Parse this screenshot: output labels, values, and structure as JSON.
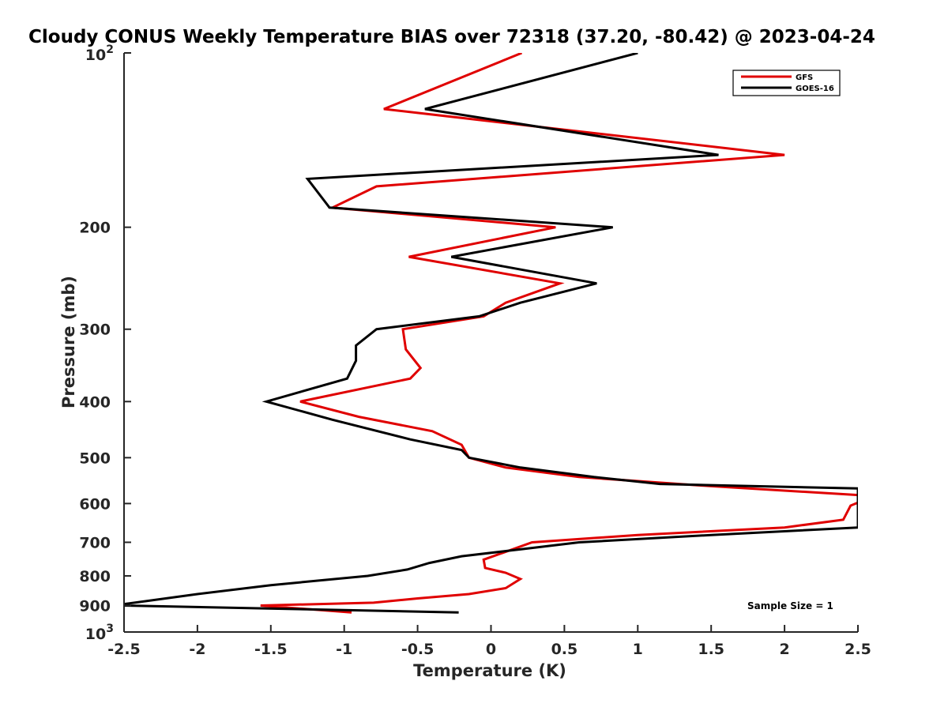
{
  "chart_data": {
    "type": "line",
    "title": "Cloudy CONUS Weekly Temperature BIAS over 72318 (37.20, -80.42) @ 2023-04-24",
    "xlabel": "Temperature (K)",
    "ylabel": "Pressure (mb)",
    "xlim": [
      -2.5,
      2.5
    ],
    "ylim": [
      100,
      1000
    ],
    "yscale": "log",
    "y_reversed": true,
    "xticks": [
      -2.5,
      -2,
      -1.5,
      -1,
      -0.5,
      0,
      0.5,
      1,
      1.5,
      2,
      2.5
    ],
    "xtick_labels": [
      "-2.5",
      "-2",
      "-1.5",
      "-1",
      "-0.5",
      "0",
      "0.5",
      "1",
      "1.5",
      "2",
      "2.5"
    ],
    "yticks": [
      200,
      300,
      400,
      500,
      600,
      700,
      800,
      900
    ],
    "ytick_labels": [
      "200",
      "300",
      "400",
      "500",
      "600",
      "700",
      "800",
      "900"
    ],
    "y_end_labels": {
      "top": {
        "value": 100,
        "base": "10",
        "exp": "2"
      },
      "bottom": {
        "value": 1000,
        "base": "10",
        "exp": "3"
      }
    },
    "legend_position": "top-right",
    "annotation": "Sample Size = 1",
    "series": [
      {
        "name": "GFS",
        "color": "#e00000",
        "points": [
          [
            0.21,
            100
          ],
          [
            -0.73,
            125
          ],
          [
            2.0,
            150
          ],
          [
            -0.78,
            170
          ],
          [
            -1.08,
            185
          ],
          [
            0.44,
            200
          ],
          [
            -0.56,
            225
          ],
          [
            0.47,
            250
          ],
          [
            0.1,
            270
          ],
          [
            -0.05,
            285
          ],
          [
            -0.6,
            300
          ],
          [
            -0.58,
            325
          ],
          [
            -0.48,
            350
          ],
          [
            -0.55,
            365
          ],
          [
            -1.3,
            400
          ],
          [
            -0.9,
            425
          ],
          [
            -0.4,
            450
          ],
          [
            -0.2,
            475
          ],
          [
            -0.15,
            500
          ],
          [
            0.1,
            520
          ],
          [
            0.6,
            540
          ],
          [
            1.5,
            560
          ],
          [
            2.5,
            580
          ],
          [
            2.52,
            595
          ],
          [
            2.45,
            605
          ],
          [
            2.4,
            640
          ],
          [
            2.0,
            660
          ],
          [
            1.0,
            680
          ],
          [
            0.28,
            700
          ],
          [
            0.08,
            730
          ],
          [
            -0.05,
            750
          ],
          [
            -0.04,
            775
          ],
          [
            0.1,
            790
          ],
          [
            0.2,
            810
          ],
          [
            0.1,
            840
          ],
          [
            -0.15,
            860
          ],
          [
            -0.5,
            875
          ],
          [
            -0.8,
            890
          ],
          [
            -1.57,
            900
          ],
          [
            -0.95,
            925
          ]
        ]
      },
      {
        "name": "GOES-16",
        "color": "#000000",
        "points": [
          [
            1.0,
            100
          ],
          [
            -0.45,
            125
          ],
          [
            1.55,
            150
          ],
          [
            -1.25,
            165
          ],
          [
            -1.1,
            185
          ],
          [
            0.83,
            200
          ],
          [
            -0.27,
            225
          ],
          [
            0.72,
            250
          ],
          [
            0.2,
            270
          ],
          [
            -0.08,
            285
          ],
          [
            -0.78,
            300
          ],
          [
            -0.92,
            320
          ],
          [
            -0.92,
            340
          ],
          [
            -0.98,
            365
          ],
          [
            -1.53,
            400
          ],
          [
            -1.08,
            430
          ],
          [
            -0.55,
            465
          ],
          [
            -0.2,
            485
          ],
          [
            -0.15,
            500
          ],
          [
            0.2,
            520
          ],
          [
            0.7,
            540
          ],
          [
            1.15,
            555
          ],
          [
            2.5,
            565
          ],
          [
            2.5,
            660
          ],
          [
            1.5,
            680
          ],
          [
            0.6,
            700
          ],
          [
            0.2,
            720
          ],
          [
            -0.2,
            740
          ],
          [
            -0.42,
            760
          ],
          [
            -0.57,
            780
          ],
          [
            -0.84,
            800
          ],
          [
            -1.5,
            830
          ],
          [
            -2.0,
            860
          ],
          [
            -2.5,
            895
          ],
          [
            -2.5,
            900
          ],
          [
            -0.22,
            925
          ]
        ]
      }
    ]
  }
}
